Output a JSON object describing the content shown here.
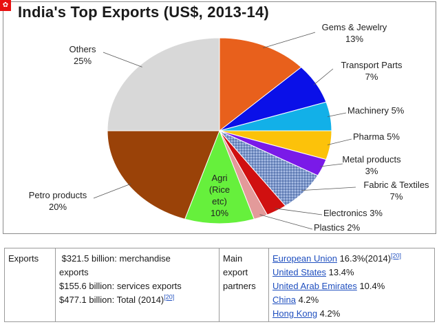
{
  "chart_data": {
    "type": "pie",
    "title": "India's Top Exports (US$, 2013-14)",
    "slices": [
      {
        "name": "Gems & Jewelry",
        "value": 13,
        "label_lines": [
          "Gems & Jewelry",
          "13%"
        ],
        "color": "#e8601c"
      },
      {
        "name": "Transport Parts",
        "value": 7,
        "label_lines": [
          "Transport Parts",
          "7%"
        ],
        "color": "#0a10e8"
      },
      {
        "name": "Machinery",
        "value": 5,
        "label_lines": [
          "Machinery 5%"
        ],
        "color": "#12b0e8"
      },
      {
        "name": "Pharma",
        "value": 5,
        "label_lines": [
          "Pharma 5%"
        ],
        "color": "#fcc20a"
      },
      {
        "name": "Metal products",
        "value": 3,
        "label_lines": [
          "Metal products",
          "3%"
        ],
        "color": "#7a1ae8"
      },
      {
        "name": "Fabric & Textiles",
        "value": 7,
        "label_lines": [
          "Fabric & Textiles",
          "7%"
        ],
        "color": "#7f98c8",
        "pattern": "textured"
      },
      {
        "name": "Electronics",
        "value": 3,
        "label_lines": [
          "Electronics 3%"
        ],
        "color": "#d01010"
      },
      {
        "name": "Plastics",
        "value": 2,
        "label_lines": [
          "Plastics 2%"
        ],
        "color": "#e39a9a"
      },
      {
        "name": "Agri (Rice etc)",
        "value": 10,
        "label_lines": [
          "Agri",
          "(Rice",
          "etc)",
          "10%"
        ],
        "color": "#66f03c"
      },
      {
        "name": "Petro products",
        "value": 20,
        "label_lines": [
          "Petro products",
          "20%"
        ],
        "color": "#9a4208"
      },
      {
        "name": "Others",
        "value": 25,
        "label_lines": [
          "Others",
          "25%"
        ],
        "color": "#d8d8d8"
      }
    ],
    "start": "12 o'clock, clockwise"
  },
  "logo": {
    "glyph": "✿"
  },
  "table": {
    "row_label": "Exports",
    "exports_lines": [
      " $321.5 billion: merchandise",
      "exports",
      "$155.6 billion: services exports",
      "$477.1 billion: Total (2014)"
    ],
    "exports_ref": "[20]",
    "partners_label_lines": [
      "Main",
      "export",
      "partners"
    ],
    "partners": [
      {
        "name": "European Union",
        "share": " 16.3%(2014)",
        "ref": "[20]"
      },
      {
        "name": "United States",
        "share": " 13.4%"
      },
      {
        "name": "United Arab Emirates",
        "share": " 10.4%"
      },
      {
        "name": "China",
        "share": " 4.2%"
      },
      {
        "name": "Hong Kong",
        "share": " 4.2%"
      }
    ]
  }
}
